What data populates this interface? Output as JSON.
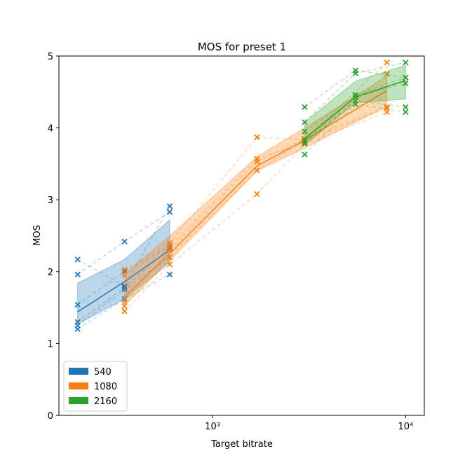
{
  "chart_data": {
    "type": "line",
    "title": "MOS for preset 1",
    "x_label": "Target bitrate",
    "y_label": "MOS",
    "xscale": "log",
    "xlim": [
      160,
      12500
    ],
    "xticks": [
      {
        "value": 1000,
        "label": "10³"
      },
      {
        "value": 10000,
        "label": "10⁴"
      }
    ],
    "ylim": [
      0,
      5
    ],
    "yticks": [
      0,
      1,
      2,
      3,
      4,
      5
    ],
    "legend": "lower left",
    "series": [
      {
        "name": "540",
        "color": "#1f77b4",
        "x": [
          200,
          350,
          600
        ],
        "values": [
          1.44,
          1.86,
          2.3
        ],
        "lower": [
          1.27,
          1.62,
          2.13
        ],
        "upper": [
          1.84,
          2.17,
          2.72
        ],
        "subjects": [
          [
            1.2,
            1.62,
            1.96
          ],
          [
            1.25,
            1.75,
            2.2
          ],
          [
            1.3,
            1.78,
            2.33
          ],
          [
            1.54,
            2.0,
            2.36
          ],
          [
            1.96,
            2.42,
            2.83
          ],
          [
            2.17,
            1.8,
            2.91
          ]
        ]
      },
      {
        "name": "1080",
        "color": "#ff7f0e",
        "x": [
          350,
          600,
          1700,
          3000,
          8000
        ],
        "values": [
          1.65,
          2.25,
          3.47,
          3.83,
          4.52
        ],
        "lower": [
          1.53,
          2.15,
          3.4,
          3.72,
          4.3
        ],
        "upper": [
          1.97,
          2.5,
          3.6,
          4.0,
          4.72
        ],
        "subjects": [
          [
            1.45,
            2.1,
            3.08,
            3.78,
            4.22
          ],
          [
            1.52,
            2.2,
            3.41,
            3.82,
            4.27
          ],
          [
            1.58,
            2.3,
            3.53,
            3.85,
            4.29
          ],
          [
            1.95,
            2.35,
            3.57,
            3.8,
            4.75
          ],
          [
            2.03,
            2.4,
            3.87,
            3.84,
            4.91
          ]
        ]
      },
      {
        "name": "2160",
        "color": "#2ca02c",
        "x": [
          3000,
          5500,
          10000
        ],
        "values": [
          3.85,
          4.43,
          4.66
        ],
        "lower": [
          3.76,
          4.35,
          4.4
        ],
        "upper": [
          4.08,
          4.65,
          4.87
        ],
        "subjects": [
          [
            3.63,
            4.33,
            4.22
          ],
          [
            3.78,
            4.38,
            4.29
          ],
          [
            3.82,
            4.43,
            4.62
          ],
          [
            3.95,
            4.46,
            4.7
          ],
          [
            4.08,
            4.76,
            4.91
          ],
          [
            4.29,
            4.8,
            4.7
          ]
        ]
      }
    ]
  }
}
